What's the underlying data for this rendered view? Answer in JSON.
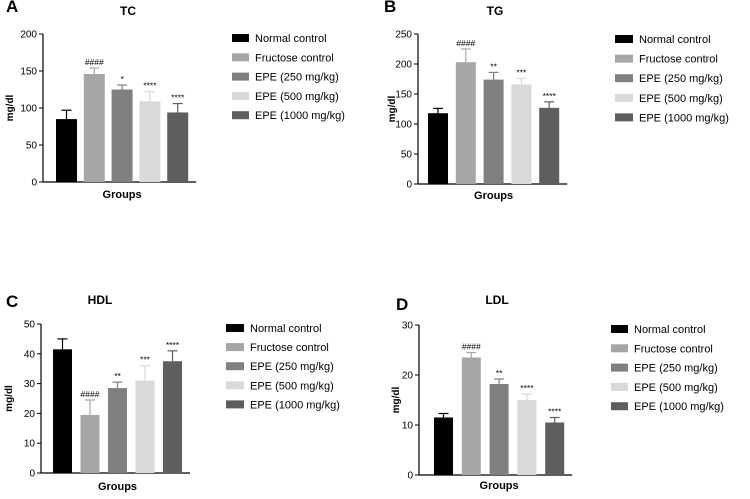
{
  "colors": [
    "#000000",
    "#a6a6a6",
    "#808080",
    "#d9d9d9",
    "#5e5e5e"
  ],
  "legend": [
    "Normal control",
    "Fructose control",
    "EPE (250 mg/kg)",
    "EPE (500 mg/kg)",
    "EPE (1000 mg/kg)"
  ],
  "chart_data": [
    {
      "type": "bar",
      "panel": "A",
      "title": "TC",
      "xlabel": "Groups",
      "ylabel": "mg/dl",
      "ylim": [
        0,
        200
      ],
      "yticks": [
        0,
        50,
        100,
        150,
        200
      ],
      "categories": [
        "Normal control",
        "Fructose control",
        "EPE (250 mg/kg)",
        "EPE (500 mg/kg)",
        "EPE (1000 mg/kg)"
      ],
      "values": [
        85,
        146,
        125,
        109,
        94
      ],
      "errors": [
        12,
        8,
        6,
        13,
        12
      ],
      "annotations": [
        "",
        "####",
        "*",
        "****",
        "****"
      ]
    },
    {
      "type": "bar",
      "panel": "B",
      "title": "TG",
      "xlabel": "Groups",
      "ylabel": "mg/dl",
      "ylim": [
        0,
        250
      ],
      "yticks": [
        0,
        50,
        100,
        150,
        200,
        250
      ],
      "categories": [
        "Normal control",
        "Fructose control",
        "EPE (250 mg/kg)",
        "EPE (500 mg/kg)",
        "EPE (1000 mg/kg)"
      ],
      "values": [
        118,
        203,
        174,
        166,
        127
      ],
      "errors": [
        8,
        22,
        12,
        10,
        10
      ],
      "annotations": [
        "",
        "####",
        "**",
        "***",
        "****"
      ]
    },
    {
      "type": "bar",
      "panel": "C",
      "title": "HDL",
      "xlabel": "Groups",
      "ylabel": "mg/dl",
      "ylim": [
        0,
        50
      ],
      "yticks": [
        0,
        10,
        20,
        30,
        40,
        50
      ],
      "categories": [
        "Normal control",
        "Fructose control",
        "EPE (250 mg/kg)",
        "EPE (500 mg/kg)",
        "EPE (1000 mg/kg)"
      ],
      "values": [
        41.5,
        19.5,
        28.5,
        31,
        37.5
      ],
      "errors": [
        3.5,
        5,
        2,
        5,
        3.5
      ],
      "annotations": [
        "",
        "####",
        "**",
        "***",
        "****"
      ]
    },
    {
      "type": "bar",
      "panel": "D",
      "title": "LDL",
      "xlabel": "Groups",
      "ylabel": "mg/dl",
      "ylim": [
        0,
        30
      ],
      "yticks": [
        0,
        10,
        20,
        30
      ],
      "categories": [
        "Normal control",
        "Fructose control",
        "EPE (250 mg/kg)",
        "EPE (500 mg/kg)",
        "EPE (1000 mg/kg)"
      ],
      "values": [
        11.5,
        23.5,
        18.2,
        15,
        10.5
      ],
      "errors": [
        0.8,
        1,
        1,
        1.2,
        1
      ],
      "annotations": [
        "",
        "####",
        "**",
        "****",
        "****"
      ]
    }
  ]
}
